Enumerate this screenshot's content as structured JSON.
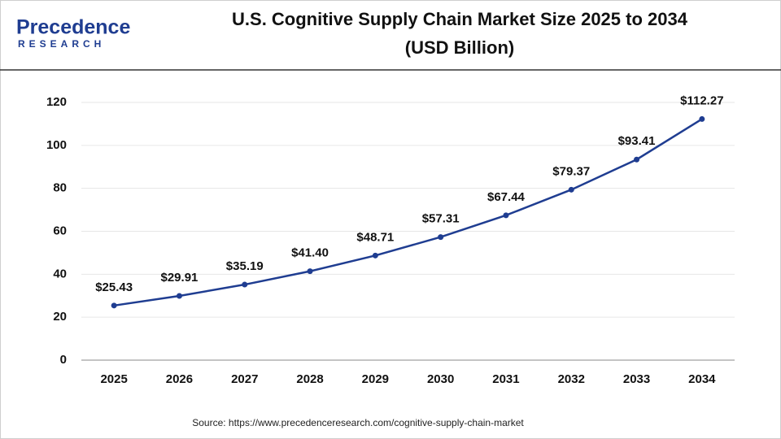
{
  "logo": {
    "name": "Precedence",
    "tagline": "RESEARCH"
  },
  "chart_data": {
    "type": "line",
    "title": "U.S. Cognitive Supply Chain Market Size 2025 to 2034",
    "subtitle": "(USD Billion)",
    "categories": [
      "2025",
      "2026",
      "2027",
      "2028",
      "2029",
      "2030",
      "2031",
      "2032",
      "2033",
      "2034"
    ],
    "values": [
      25.43,
      29.91,
      35.19,
      41.4,
      48.71,
      57.31,
      67.44,
      79.37,
      93.41,
      112.27
    ],
    "value_labels": [
      "$25.43",
      "$29.91",
      "$35.19",
      "$41.40",
      "$48.71",
      "$57.31",
      "$67.44",
      "$79.37",
      "$93.41",
      "$112.27"
    ],
    "color": "#1f3d91",
    "ylim": [
      0,
      120
    ],
    "yticks": [
      0,
      20,
      40,
      60,
      80,
      100,
      120
    ],
    "grid": true,
    "source": "Source: https://www.precedenceresearch.com/cognitive-supply-chain-market"
  }
}
